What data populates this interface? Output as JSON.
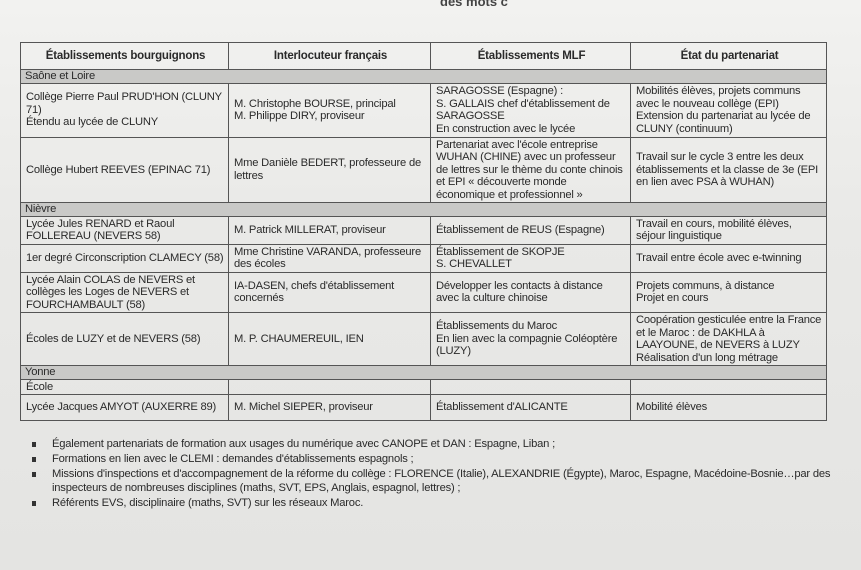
{
  "top_fragment": "des mots c",
  "table": {
    "headers": [
      "Établissements bourguignons",
      "Interlocuteur français",
      "Établissements MLF",
      "État du partenariat"
    ],
    "regions": [
      {
        "name": "Saône et Loire",
        "rows": [
          [
            "Collège Pierre Paul PRUD'HON (CLUNY 71)\nÉtendu au lycée de CLUNY",
            "M. Christophe BOURSE, principal\nM. Philippe DIRY, proviseur",
            "SARAGOSSE (Espagne) :\nS. GALLAIS chef d'établissement de SARAGOSSE\nEn construction avec le lycée",
            "Mobilités élèves, projets communs avec le nouveau collège (EPI)\nExtension du partenariat au lycée de CLUNY (continuum)"
          ],
          [
            "Collège Hubert REEVES (EPINAC 71)",
            "Mme Danièle BEDERT, professeure de lettres",
            "Partenariat avec l'école entreprise WUHAN (CHINE) avec un professeur de lettres sur le thème du conte chinois et EPI « découverte monde économique et professionnel »",
            "Travail sur le cycle 3 entre les deux établissements et la classe de 3e (EPI en lien avec PSA à WUHAN)"
          ]
        ]
      },
      {
        "name": "Nièvre",
        "rows": [
          [
            "Lycée Jules RENARD et Raoul FOLLEREAU (NEVERS 58)",
            "M. Patrick MILLERAT, proviseur",
            "Établissement de REUS (Espagne)",
            "Travail en cours, mobilité élèves, séjour linguistique"
          ],
          [
            "1er degré Circonscription CLAMECY (58)",
            "Mme Christine VARANDA, professeure des écoles",
            "Établissement de SKOPJE\nS. CHEVALLET",
            "Travail entre école avec e-twinning"
          ],
          [
            "Lycée Alain COLAS de NEVERS et collèges les Loges de NEVERS et FOURCHAMBAULT (58)",
            "IA-DASEN, chefs d'établissement concernés",
            "Développer les contacts à distance avec la culture chinoise",
            "Projets communs, à distance\nProjet en cours"
          ],
          [
            "Écoles de LUZY et de NEVERS (58)",
            "M. P. CHAUMEREUIL, IEN",
            "Établissements du Maroc\nEn lien avec la compagnie Coléoptère (LUZY)",
            "Coopération gesticulée entre la France et le Maroc : de DAKHLA à LAAYOUNE, de NEVERS à LUZY\nRéalisation d'un long métrage"
          ]
        ]
      },
      {
        "name": "Yonne",
        "rows": [
          [
            "École",
            "",
            "",
            ""
          ],
          [
            "Lycée Jacques AMYOT (AUXERRE 89)",
            "M. Michel SIEPER, proviseur",
            "Établissement d'ALICANTE",
            "Mobilité élèves"
          ]
        ]
      }
    ]
  },
  "bullets": [
    "Également partenariats de formation aux usages du numérique avec CANOPE et DAN : Espagne, Liban ;",
    "Formations en lien avec le CLEMI : demandes d'établissements espagnols ;",
    "Missions d'inspections et d'accompagnement de la réforme du collège : FLORENCE (Italie), ALEXANDRIE (Égypte), Maroc, Espagne, Macédoine-Bosnie…par des inspecteurs de nombreuses disciplines (maths, SVT, EPS, Anglais, espagnol, lettres) ;",
    "Référents EVS, disciplinaire (maths, SVT) sur les réseaux Maroc."
  ]
}
